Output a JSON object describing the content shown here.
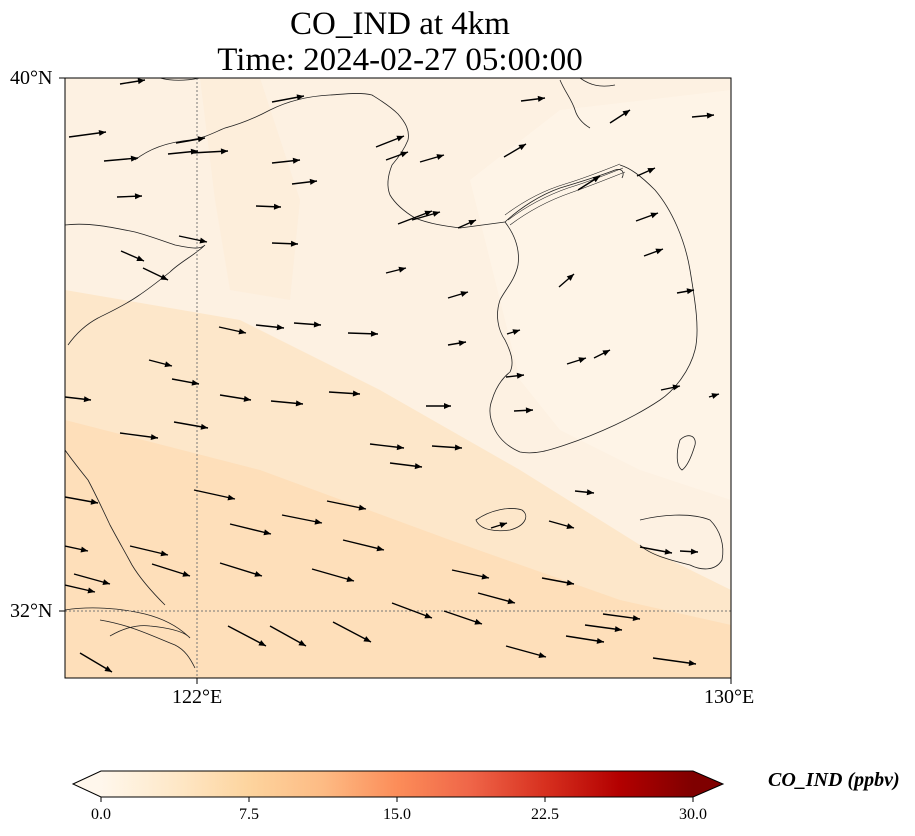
{
  "title": {
    "line1": "CO_IND at 4km",
    "line2": "Time: 2024-02-27 05:00:00"
  },
  "map": {
    "lat_labels": [
      "40°N",
      "32°N"
    ],
    "lon_labels": [
      "122°E",
      "130°E"
    ],
    "extent": {
      "lon_min": 120,
      "lon_max": 130,
      "lat_min": 31,
      "lat_max": 40
    },
    "gridlines": {
      "lons": [
        122
      ],
      "lats": [
        32
      ],
      "style": "dotted"
    }
  },
  "colorbar": {
    "label": "CO_IND (ppbv)",
    "ticks": [
      "0.0",
      "7.5",
      "15.0",
      "22.5",
      "30.0"
    ],
    "min": 0,
    "max": 30,
    "extend": "both",
    "colormap": "OrRd",
    "colors": [
      "#fff7ec",
      "#fee8c8",
      "#fdd49e",
      "#fdbb84",
      "#fc8d59",
      "#ef6548",
      "#d7301f",
      "#b30000",
      "#7f0000"
    ]
  }
}
